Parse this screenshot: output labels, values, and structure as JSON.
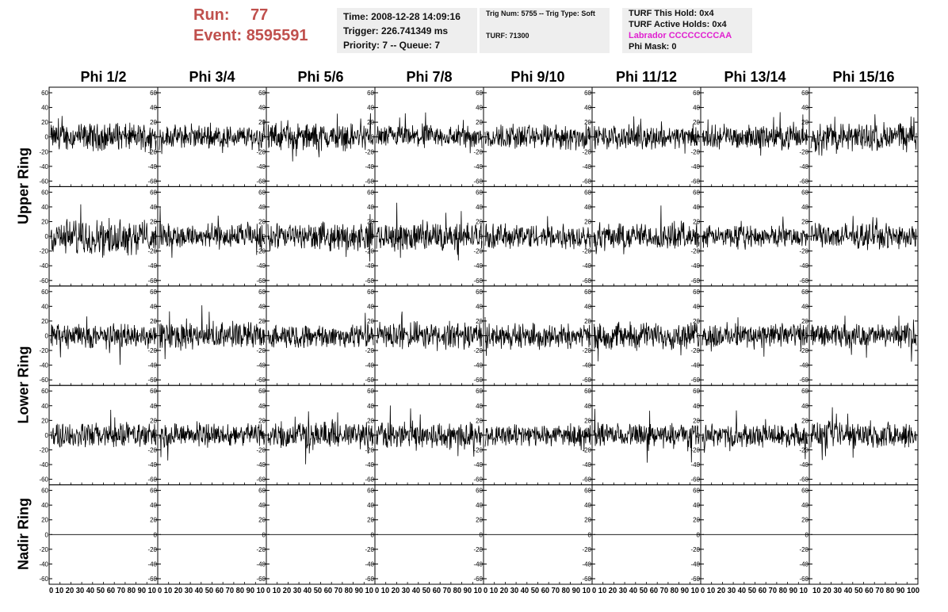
{
  "header": {
    "run_label": "Run:",
    "run_value": "77",
    "event_label": "Event:",
    "event_value": "8595591"
  },
  "info1": {
    "time": "Time: 2008-12-28 14:09:16",
    "trigger": "Trigger: 226.741349 ms",
    "priority": "Priority: 7 -- Queue: 7"
  },
  "info2": {
    "trig": "Trig Num: 5755 -- Trig Type: Soft",
    "turf": "TURF: 71300"
  },
  "info3": {
    "hold": "TURF This Hold: 0x4",
    "active": "TURF Active Holds: 0x4",
    "labrador": "Labrador CCCCCCCCAA",
    "phimask": "Phi Mask: 0"
  },
  "chart_data": {
    "type": "line",
    "columns": [
      "Phi 1/2",
      "Phi 3/4",
      "Phi 5/6",
      "Phi 7/8",
      "Phi 9/10",
      "Phi 11/12",
      "Phi 13/14",
      "Phi 15/16"
    ],
    "row_groups": [
      {
        "label": "Upper Ring",
        "rows": 2
      },
      {
        "label": "Lower Ring",
        "rows": 2
      },
      {
        "label": "Nadir Ring",
        "rows": 1
      }
    ],
    "xlim": [
      0,
      100
    ],
    "ylim": [
      -60,
      60
    ],
    "yticks": [
      60,
      40,
      20,
      0,
      -20,
      -40,
      -60
    ],
    "xtick_label_strips": [
      "0 10 20 30 40 50 60 70 80 90 10",
      "0 10 20 30 40 50 60 70 80 90 10",
      "0 10 20 30 40 50 60 70 80 90 10",
      "0 10 20 30 40 50 60 70 80 90 10",
      "0 10 20 30 40 50 60 70 80 90 10",
      "0 10 20 30 40 50 60 70 80 90 10",
      "0 10 20 30 40 50 60 70 80 90 10",
      "10 20 30 40 50 60 70 80 90 100"
    ],
    "trace_amplitude": [
      [
        14,
        12,
        14,
        12,
        13,
        12,
        12,
        15
      ],
      [
        18,
        13,
        14,
        15,
        13,
        14,
        11,
        13
      ],
      [
        13,
        14,
        12,
        14,
        13,
        14,
        13,
        12
      ],
      [
        13,
        12,
        14,
        14,
        11,
        12,
        12,
        14
      ],
      [
        0,
        0,
        0,
        0,
        0,
        0,
        0,
        0
      ]
    ],
    "grid": false,
    "legend": "none"
  }
}
